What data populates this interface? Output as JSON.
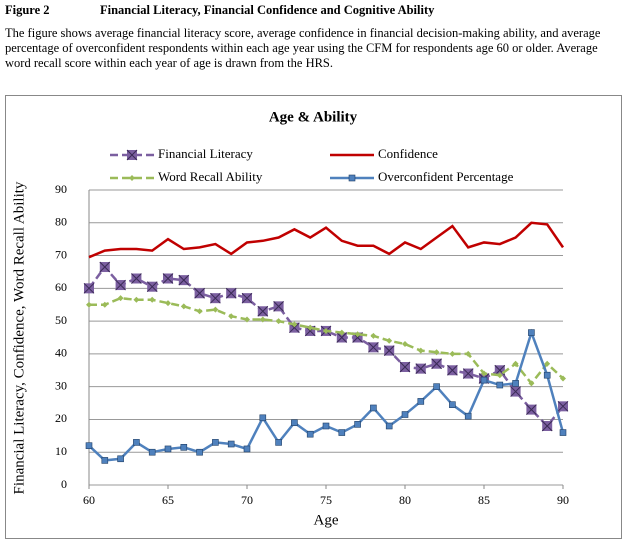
{
  "figure": {
    "label": "Figure 2",
    "title": "Financial Literacy, Financial Confidence and Cognitive Ability",
    "caption": "The figure shows average financial literacy score, average confidence in financial decision-making ability, and average percentage of overconfident respondents within each age year using the CFM for respondents age 60 or older.   Average word recall score within each year of age is drawn from the HRS."
  },
  "chart_data": {
    "type": "line",
    "title": "Age & Ability",
    "xlabel": "Age",
    "ylabel": "Financial Literacy, Confidence, Word Recall Ability",
    "x": [
      60,
      61,
      62,
      63,
      64,
      65,
      66,
      67,
      68,
      69,
      70,
      71,
      72,
      73,
      74,
      75,
      76,
      77,
      78,
      79,
      80,
      81,
      82,
      83,
      84,
      85,
      86,
      87,
      88,
      89,
      90
    ],
    "xlim": [
      60,
      90
    ],
    "xticks": [
      60,
      65,
      70,
      75,
      80,
      85,
      90
    ],
    "ylim": [
      0,
      90
    ],
    "yticks": [
      0,
      10,
      20,
      30,
      40,
      50,
      60,
      70,
      80,
      90
    ],
    "grid": true,
    "series": [
      {
        "name": "Financial Literacy",
        "color": "#7b5fa0",
        "dashed": true,
        "marker": "square-x",
        "values": [
          60,
          66.5,
          61,
          63,
          60.5,
          63,
          62.5,
          58.5,
          57,
          58.5,
          57,
          53,
          54.5,
          48,
          47,
          47,
          45,
          45,
          42,
          41,
          36,
          35.5,
          37,
          35,
          34,
          32.5,
          35,
          28.5,
          23,
          18,
          24
        ]
      },
      {
        "name": "Confidence",
        "color": "#c00000",
        "dashed": false,
        "marker": "none",
        "values": [
          69.5,
          71.5,
          72,
          72,
          71.5,
          75,
          72,
          72.5,
          73.5,
          70.5,
          74,
          74.5,
          75.5,
          78,
          75.5,
          78.5,
          74.5,
          73,
          73,
          70.5,
          74,
          72,
          75.5,
          79,
          72.5,
          74,
          73.5,
          75.5,
          80,
          79.5,
          72.5
        ]
      },
      {
        "name": "Word Recall Ability",
        "color": "#9bbb59",
        "dashed": true,
        "marker": "diamond",
        "values": [
          55,
          55,
          57,
          56.5,
          56.5,
          55.5,
          54.5,
          53,
          53.5,
          51.5,
          50.5,
          50.5,
          50,
          49,
          48,
          47,
          46.5,
          46,
          45.5,
          44,
          43,
          41,
          40.5,
          40,
          40,
          34,
          33.5,
          37,
          31,
          37,
          32.5
        ]
      },
      {
        "name": "Overconfident Percentage",
        "color": "#4f81bd",
        "dashed": false,
        "marker": "square",
        "values": [
          12,
          7.5,
          8,
          13,
          10,
          11,
          11.5,
          10,
          13,
          12.5,
          11,
          20.5,
          13,
          19,
          15.5,
          18,
          16,
          18.5,
          23.5,
          18,
          21.5,
          25.5,
          30,
          24.5,
          21,
          32,
          30.5,
          31,
          46.5,
          33.5,
          16
        ]
      }
    ]
  }
}
